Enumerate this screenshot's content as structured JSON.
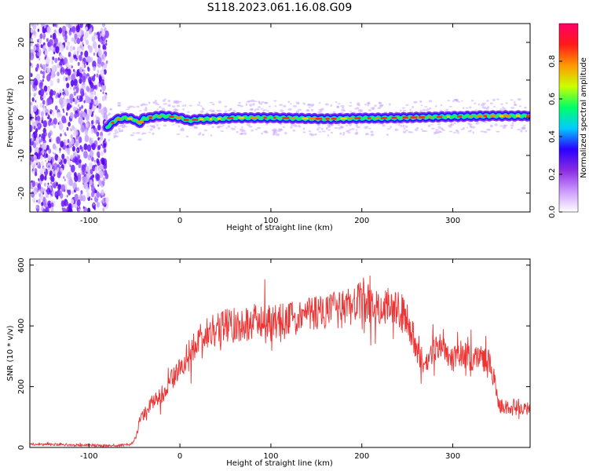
{
  "title": "S118.2023.061.16.08.G09",
  "chart_data": [
    {
      "type": "heatmap",
      "xlabel": "Height of straight line (km)",
      "ylabel": "Frequency (Hz)",
      "xlim": [
        -165,
        385
      ],
      "ylim": [
        -25,
        25
      ],
      "x_ticks": [
        -100,
        0,
        100,
        200,
        300
      ],
      "y_ticks": [
        -20,
        -10,
        0,
        10,
        20
      ],
      "noise_region_x": [
        -165,
        -80
      ],
      "ridge": {
        "x": [
          -80,
          -70,
          -60,
          -50,
          -45,
          -40,
          -30,
          -20,
          -10,
          0,
          10,
          20,
          40,
          60,
          80,
          100,
          120,
          140,
          160,
          180,
          200,
          220,
          240,
          260,
          280,
          300,
          320,
          340,
          360,
          385
        ],
        "y": [
          -2.5,
          -0.5,
          0,
          -0.5,
          -1.5,
          -0.3,
          0.2,
          0.5,
          0.3,
          0,
          -0.8,
          -0.4,
          -0.3,
          0,
          0,
          0,
          -0.1,
          -0.2,
          -0.3,
          -0.2,
          -0.1,
          -0.1,
          0,
          0.1,
          0.2,
          0.3,
          0.4,
          0.5,
          0.5,
          0.5
        ]
      },
      "colorbar": {
        "label": "Normalized spectral amplitude",
        "range": [
          0.0,
          1.0
        ],
        "ticks": [
          "0.0",
          "0.2",
          "0.4",
          "0.6",
          "0.8"
        ],
        "tick_values": [
          0.0,
          0.2,
          0.4,
          0.6,
          0.8
        ],
        "colors": [
          "#ffffff",
          "#cc99ff",
          "#8a2be2",
          "#2a00ff",
          "#00ccff",
          "#00ff66",
          "#ccff00",
          "#ff9900",
          "#ff1a1a",
          "#ff0066"
        ]
      }
    },
    {
      "type": "line",
      "xlabel": "Height of straight line (km)",
      "ylabel": "SNR (10 * v/v)",
      "xlim": [
        -165,
        385
      ],
      "ylim": [
        0,
        620
      ],
      "x_ticks": [
        -100,
        0,
        100,
        200,
        300
      ],
      "y_ticks": [
        0,
        200,
        400,
        600
      ],
      "color": "#ee3333",
      "series": [
        {
          "x": [
            -165,
            -140,
            -110,
            -80,
            -60,
            -52,
            -48,
            -45,
            -40,
            -30,
            -20,
            -15,
            -10,
            -5,
            0,
            5,
            10,
            20,
            30,
            40,
            50,
            60,
            70,
            80,
            100,
            110,
            120,
            130,
            140,
            150,
            160,
            170,
            180,
            190,
            200,
            210,
            220,
            230,
            240,
            250,
            255,
            260,
            270,
            280,
            290,
            300,
            310,
            320,
            330,
            340,
            345,
            350,
            360,
            370,
            380,
            385
          ],
          "y": [
            10,
            10,
            8,
            6,
            8,
            15,
            40,
            80,
            110,
            150,
            175,
            190,
            220,
            240,
            260,
            285,
            310,
            350,
            380,
            390,
            400,
            405,
            405,
            410,
            415,
            420,
            420,
            425,
            440,
            445,
            440,
            450,
            455,
            470,
            480,
            470,
            470,
            460,
            460,
            420,
            380,
            320,
            270,
            330,
            330,
            290,
            310,
            290,
            300,
            280,
            230,
            140,
            130,
            140,
            130,
            120
          ]
        }
      ]
    }
  ]
}
